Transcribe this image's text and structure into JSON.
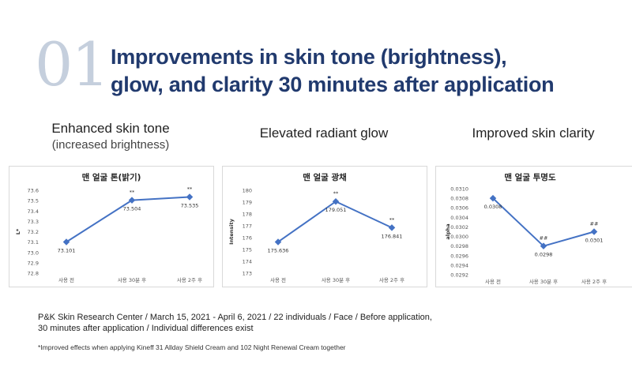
{
  "header": {
    "number": "01",
    "title_line1": "Improvements in skin tone (brightness),",
    "title_line2": "glow, and clarity 30 minutes after application"
  },
  "columns": [
    {
      "heading": "Enhanced skin tone",
      "subheading": "(increased brightness)"
    },
    {
      "heading": "Elevated radiant glow",
      "subheading": ""
    },
    {
      "heading": "Improved skin clarity",
      "subheading": ""
    }
  ],
  "colors": {
    "line": "#4472c4",
    "title": "#213a6e",
    "number": "#c5cfdd"
  },
  "chart_data": [
    {
      "type": "line",
      "title": "맨 얼굴 톤(밝기)",
      "ylabel": "L*",
      "categories": [
        "사용 전",
        "사용 30분 후",
        "사용 2주 후"
      ],
      "values": [
        73.101,
        73.504,
        73.535
      ],
      "data_labels": [
        "73.101",
        "73.504",
        "73.535"
      ],
      "markers": [
        "",
        "**",
        "**"
      ],
      "yticks": [
        "72.8",
        "72.9",
        "73.0",
        "73.1",
        "73.2",
        "73.3",
        "73.4",
        "73.5",
        "73.6"
      ],
      "ylim": [
        72.8,
        73.6
      ]
    },
    {
      "type": "line",
      "title": "맨 얼굴 광채",
      "ylabel": "Intensity",
      "categories": [
        "사용 전",
        "사용 30분 후",
        "사용 2주 후"
      ],
      "values": [
        175.636,
        179.051,
        176.841
      ],
      "data_labels": [
        "175.636",
        "179.051",
        "176.841"
      ],
      "markers": [
        "",
        "**",
        "**"
      ],
      "yticks": [
        "173",
        "174",
        "175",
        "176",
        "177",
        "178",
        "179",
        "180"
      ],
      "ylim": [
        173,
        180
      ]
    },
    {
      "type": "line",
      "title": "맨 얼굴 투명도",
      "ylabel": "alpha",
      "categories": [
        "사용 전",
        "사용 30분 후",
        "사용 2주 후"
      ],
      "values": [
        0.0308,
        0.0298,
        0.0301
      ],
      "data_labels": [
        "0.0308",
        "0.0298",
        "0.0301"
      ],
      "markers": [
        "",
        "##",
        "##"
      ],
      "yticks": [
        "0.0292",
        "0.0294",
        "0.0296",
        "0.0298",
        "0.0300",
        "0.0302",
        "0.0304",
        "0.0306",
        "0.0308",
        "0.0310"
      ],
      "ylim": [
        0.0292,
        0.031
      ]
    }
  ],
  "footnote": {
    "line1": "P&K Skin Research Center / March 15, 2021 - April 6, 2021 / 22 individuals / Face / Before application,",
    "line2": "30 minutes after application / Individual differences exist",
    "asterisk_note": "*Improved effects when applying Kineff 31 Allday Shield Cream and 102 Night Renewal Cream together"
  }
}
